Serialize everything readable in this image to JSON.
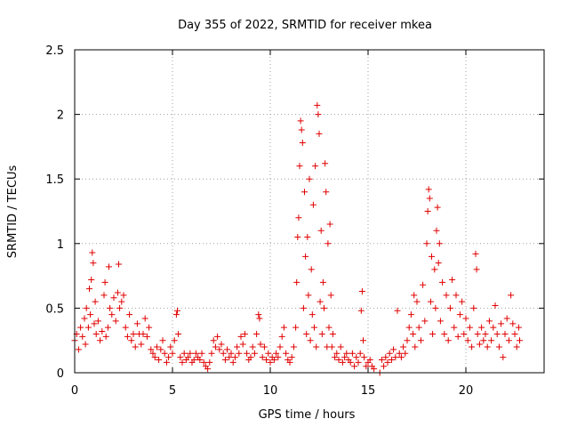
{
  "chart_data": {
    "type": "scatter",
    "title": "Day 355 of 2022, SRMTID for receiver mkea",
    "xlabel": "GPS time / hours",
    "ylabel": "SRMTID / TECUs",
    "xlim": [
      0,
      24
    ],
    "ylim": [
      0,
      2.5
    ],
    "x_ticks": [
      0,
      5,
      10,
      15,
      20
    ],
    "x_tick_labels": [
      "0",
      "5",
      "10",
      "15",
      "20"
    ],
    "y_ticks": [
      0,
      0.5,
      1,
      1.5,
      2,
      2.5
    ],
    "y_tick_labels": [
      "0",
      "0.5",
      "1",
      "1.5",
      "2",
      "2.5"
    ],
    "grid": true,
    "marker": "+",
    "color": "#e00000",
    "series": [
      {
        "name": "SRMTID",
        "points": [
          [
            0.0,
            0.25
          ],
          [
            0.1,
            0.3
          ],
          [
            0.2,
            0.18
          ],
          [
            0.3,
            0.35
          ],
          [
            0.4,
            0.28
          ],
          [
            0.5,
            0.42
          ],
          [
            0.55,
            0.22
          ],
          [
            0.6,
            0.5
          ],
          [
            0.7,
            0.35
          ],
          [
            0.75,
            0.65
          ],
          [
            0.8,
            0.45
          ],
          [
            0.85,
            0.72
          ],
          [
            0.9,
            0.93
          ],
          [
            0.95,
            0.85
          ],
          [
            1.0,
            0.38
          ],
          [
            1.05,
            0.55
          ],
          [
            1.1,
            0.3
          ],
          [
            1.2,
            0.4
          ],
          [
            1.3,
            0.25
          ],
          [
            1.4,
            0.32
          ],
          [
            1.5,
            0.6
          ],
          [
            1.55,
            0.7
          ],
          [
            1.6,
            0.28
          ],
          [
            1.7,
            0.35
          ],
          [
            1.75,
            0.82
          ],
          [
            1.8,
            0.5
          ],
          [
            1.9,
            0.45
          ],
          [
            2.0,
            0.58
          ],
          [
            2.1,
            0.4
          ],
          [
            2.2,
            0.62
          ],
          [
            2.25,
            0.84
          ],
          [
            2.3,
            0.5
          ],
          [
            2.4,
            0.55
          ],
          [
            2.5,
            0.6
          ],
          [
            2.6,
            0.35
          ],
          [
            2.7,
            0.28
          ],
          [
            2.8,
            0.45
          ],
          [
            2.9,
            0.25
          ],
          [
            3.0,
            0.3
          ],
          [
            3.1,
            0.2
          ],
          [
            3.2,
            0.38
          ],
          [
            3.3,
            0.3
          ],
          [
            3.4,
            0.22
          ],
          [
            3.5,
            0.3
          ],
          [
            3.6,
            0.42
          ],
          [
            3.7,
            0.28
          ],
          [
            3.8,
            0.35
          ],
          [
            3.9,
            0.18
          ],
          [
            4.0,
            0.15
          ],
          [
            4.1,
            0.12
          ],
          [
            4.2,
            0.2
          ],
          [
            4.3,
            0.1
          ],
          [
            4.4,
            0.18
          ],
          [
            4.5,
            0.25
          ],
          [
            4.6,
            0.15
          ],
          [
            4.7,
            0.08
          ],
          [
            4.8,
            0.12
          ],
          [
            4.9,
            0.2
          ],
          [
            5.0,
            0.15
          ],
          [
            5.1,
            0.25
          ],
          [
            5.2,
            0.45
          ],
          [
            5.25,
            0.48
          ],
          [
            5.3,
            0.3
          ],
          [
            5.4,
            0.12
          ],
          [
            5.5,
            0.08
          ],
          [
            5.6,
            0.15
          ],
          [
            5.7,
            0.1
          ],
          [
            5.8,
            0.12
          ],
          [
            5.9,
            0.15
          ],
          [
            6.0,
            0.08
          ],
          [
            6.1,
            0.1
          ],
          [
            6.2,
            0.15
          ],
          [
            6.3,
            0.12
          ],
          [
            6.4,
            0.1
          ],
          [
            6.5,
            0.15
          ],
          [
            6.6,
            0.08
          ],
          [
            6.7,
            0.05
          ],
          [
            6.8,
            0.03
          ],
          [
            6.9,
            0.08
          ],
          [
            7.0,
            0.15
          ],
          [
            7.1,
            0.25
          ],
          [
            7.2,
            0.2
          ],
          [
            7.3,
            0.28
          ],
          [
            7.4,
            0.18
          ],
          [
            7.5,
            0.22
          ],
          [
            7.6,
            0.15
          ],
          [
            7.7,
            0.1
          ],
          [
            7.8,
            0.18
          ],
          [
            7.9,
            0.12
          ],
          [
            8.0,
            0.15
          ],
          [
            8.1,
            0.08
          ],
          [
            8.2,
            0.12
          ],
          [
            8.3,
            0.2
          ],
          [
            8.4,
            0.15
          ],
          [
            8.5,
            0.28
          ],
          [
            8.6,
            0.22
          ],
          [
            8.7,
            0.3
          ],
          [
            8.8,
            0.15
          ],
          [
            8.9,
            0.1
          ],
          [
            9.0,
            0.12
          ],
          [
            9.1,
            0.2
          ],
          [
            9.2,
            0.15
          ],
          [
            9.3,
            0.3
          ],
          [
            9.4,
            0.45
          ],
          [
            9.45,
            0.42
          ],
          [
            9.5,
            0.22
          ],
          [
            9.6,
            0.12
          ],
          [
            9.7,
            0.2
          ],
          [
            9.8,
            0.1
          ],
          [
            9.9,
            0.15
          ],
          [
            10.0,
            0.08
          ],
          [
            10.1,
            0.12
          ],
          [
            10.2,
            0.1
          ],
          [
            10.3,
            0.15
          ],
          [
            10.4,
            0.12
          ],
          [
            10.5,
            0.2
          ],
          [
            10.6,
            0.28
          ],
          [
            10.7,
            0.35
          ],
          [
            10.8,
            0.15
          ],
          [
            10.9,
            0.1
          ],
          [
            11.0,
            0.08
          ],
          [
            11.1,
            0.12
          ],
          [
            11.2,
            0.2
          ],
          [
            11.3,
            0.35
          ],
          [
            11.35,
            0.7
          ],
          [
            11.4,
            1.05
          ],
          [
            11.45,
            1.2
          ],
          [
            11.5,
            1.6
          ],
          [
            11.55,
            1.95
          ],
          [
            11.6,
            1.88
          ],
          [
            11.65,
            1.78
          ],
          [
            11.7,
            0.5
          ],
          [
            11.75,
            1.4
          ],
          [
            11.8,
            0.9
          ],
          [
            11.85,
            0.3
          ],
          [
            11.9,
            1.05
          ],
          [
            11.95,
            0.6
          ],
          [
            12.0,
            1.5
          ],
          [
            12.05,
            0.25
          ],
          [
            12.1,
            0.8
          ],
          [
            12.15,
            0.45
          ],
          [
            12.2,
            1.3
          ],
          [
            12.25,
            0.35
          ],
          [
            12.3,
            1.6
          ],
          [
            12.35,
            0.2
          ],
          [
            12.4,
            2.07
          ],
          [
            12.45,
            2.0
          ],
          [
            12.5,
            1.85
          ],
          [
            12.55,
            0.55
          ],
          [
            12.6,
            1.1
          ],
          [
            12.65,
            0.3
          ],
          [
            12.7,
            0.7
          ],
          [
            12.75,
            0.5
          ],
          [
            12.8,
            1.62
          ],
          [
            12.85,
            1.4
          ],
          [
            12.9,
            0.2
          ],
          [
            12.95,
            1.0
          ],
          [
            13.0,
            0.35
          ],
          [
            13.05,
            1.15
          ],
          [
            13.1,
            0.6
          ],
          [
            13.15,
            0.2
          ],
          [
            13.2,
            0.3
          ],
          [
            13.3,
            0.12
          ],
          [
            13.4,
            0.15
          ],
          [
            13.5,
            0.1
          ],
          [
            13.6,
            0.2
          ],
          [
            13.7,
            0.08
          ],
          [
            13.8,
            0.12
          ],
          [
            13.9,
            0.15
          ],
          [
            14.0,
            0.1
          ],
          [
            14.1,
            0.08
          ],
          [
            14.2,
            0.15
          ],
          [
            14.3,
            0.05
          ],
          [
            14.4,
            0.12
          ],
          [
            14.5,
            0.08
          ],
          [
            14.6,
            0.15
          ],
          [
            14.65,
            0.48
          ],
          [
            14.7,
            0.63
          ],
          [
            14.75,
            0.25
          ],
          [
            14.8,
            0.12
          ],
          [
            14.9,
            0.05
          ],
          [
            15.0,
            0.08
          ],
          [
            15.1,
            0.1
          ],
          [
            15.2,
            0.05
          ],
          [
            15.3,
            0.03
          ],
          [
            15.6,
            0.0
          ],
          [
            15.7,
            0.1
          ],
          [
            15.8,
            0.05
          ],
          [
            15.9,
            0.12
          ],
          [
            16.0,
            0.08
          ],
          [
            16.1,
            0.15
          ],
          [
            16.2,
            0.1
          ],
          [
            16.3,
            0.18
          ],
          [
            16.4,
            0.12
          ],
          [
            16.5,
            0.48
          ],
          [
            16.6,
            0.15
          ],
          [
            16.7,
            0.12
          ],
          [
            16.8,
            0.2
          ],
          [
            16.9,
            0.15
          ],
          [
            17.0,
            0.25
          ],
          [
            17.1,
            0.35
          ],
          [
            17.2,
            0.45
          ],
          [
            17.3,
            0.3
          ],
          [
            17.35,
            0.6
          ],
          [
            17.4,
            0.2
          ],
          [
            17.5,
            0.55
          ],
          [
            17.6,
            0.35
          ],
          [
            17.7,
            0.25
          ],
          [
            17.8,
            0.68
          ],
          [
            17.9,
            0.4
          ],
          [
            18.0,
            1.0
          ],
          [
            18.05,
            1.25
          ],
          [
            18.1,
            1.42
          ],
          [
            18.15,
            1.35
          ],
          [
            18.2,
            0.55
          ],
          [
            18.25,
            0.9
          ],
          [
            18.3,
            0.3
          ],
          [
            18.4,
            0.8
          ],
          [
            18.45,
            0.5
          ],
          [
            18.5,
            1.1
          ],
          [
            18.55,
            1.28
          ],
          [
            18.6,
            0.85
          ],
          [
            18.65,
            1.0
          ],
          [
            18.7,
            0.4
          ],
          [
            18.8,
            0.7
          ],
          [
            18.9,
            0.3
          ],
          [
            19.0,
            0.6
          ],
          [
            19.1,
            0.25
          ],
          [
            19.2,
            0.5
          ],
          [
            19.3,
            0.72
          ],
          [
            19.4,
            0.35
          ],
          [
            19.5,
            0.6
          ],
          [
            19.6,
            0.28
          ],
          [
            19.7,
            0.45
          ],
          [
            19.8,
            0.55
          ],
          [
            19.9,
            0.3
          ],
          [
            20.0,
            0.42
          ],
          [
            20.1,
            0.25
          ],
          [
            20.2,
            0.35
          ],
          [
            20.3,
            0.2
          ],
          [
            20.4,
            0.5
          ],
          [
            20.5,
            0.92
          ],
          [
            20.55,
            0.8
          ],
          [
            20.6,
            0.3
          ],
          [
            20.7,
            0.22
          ],
          [
            20.8,
            0.35
          ],
          [
            20.9,
            0.25
          ],
          [
            21.0,
            0.3
          ],
          [
            21.1,
            0.2
          ],
          [
            21.2,
            0.4
          ],
          [
            21.3,
            0.25
          ],
          [
            21.4,
            0.35
          ],
          [
            21.5,
            0.52
          ],
          [
            21.6,
            0.3
          ],
          [
            21.7,
            0.2
          ],
          [
            21.8,
            0.38
          ],
          [
            21.9,
            0.12
          ],
          [
            22.0,
            0.3
          ],
          [
            22.1,
            0.42
          ],
          [
            22.2,
            0.25
          ],
          [
            22.3,
            0.6
          ],
          [
            22.4,
            0.38
          ],
          [
            22.5,
            0.3
          ],
          [
            22.6,
            0.2
          ],
          [
            22.7,
            0.35
          ],
          [
            22.75,
            0.25
          ]
        ]
      }
    ]
  }
}
